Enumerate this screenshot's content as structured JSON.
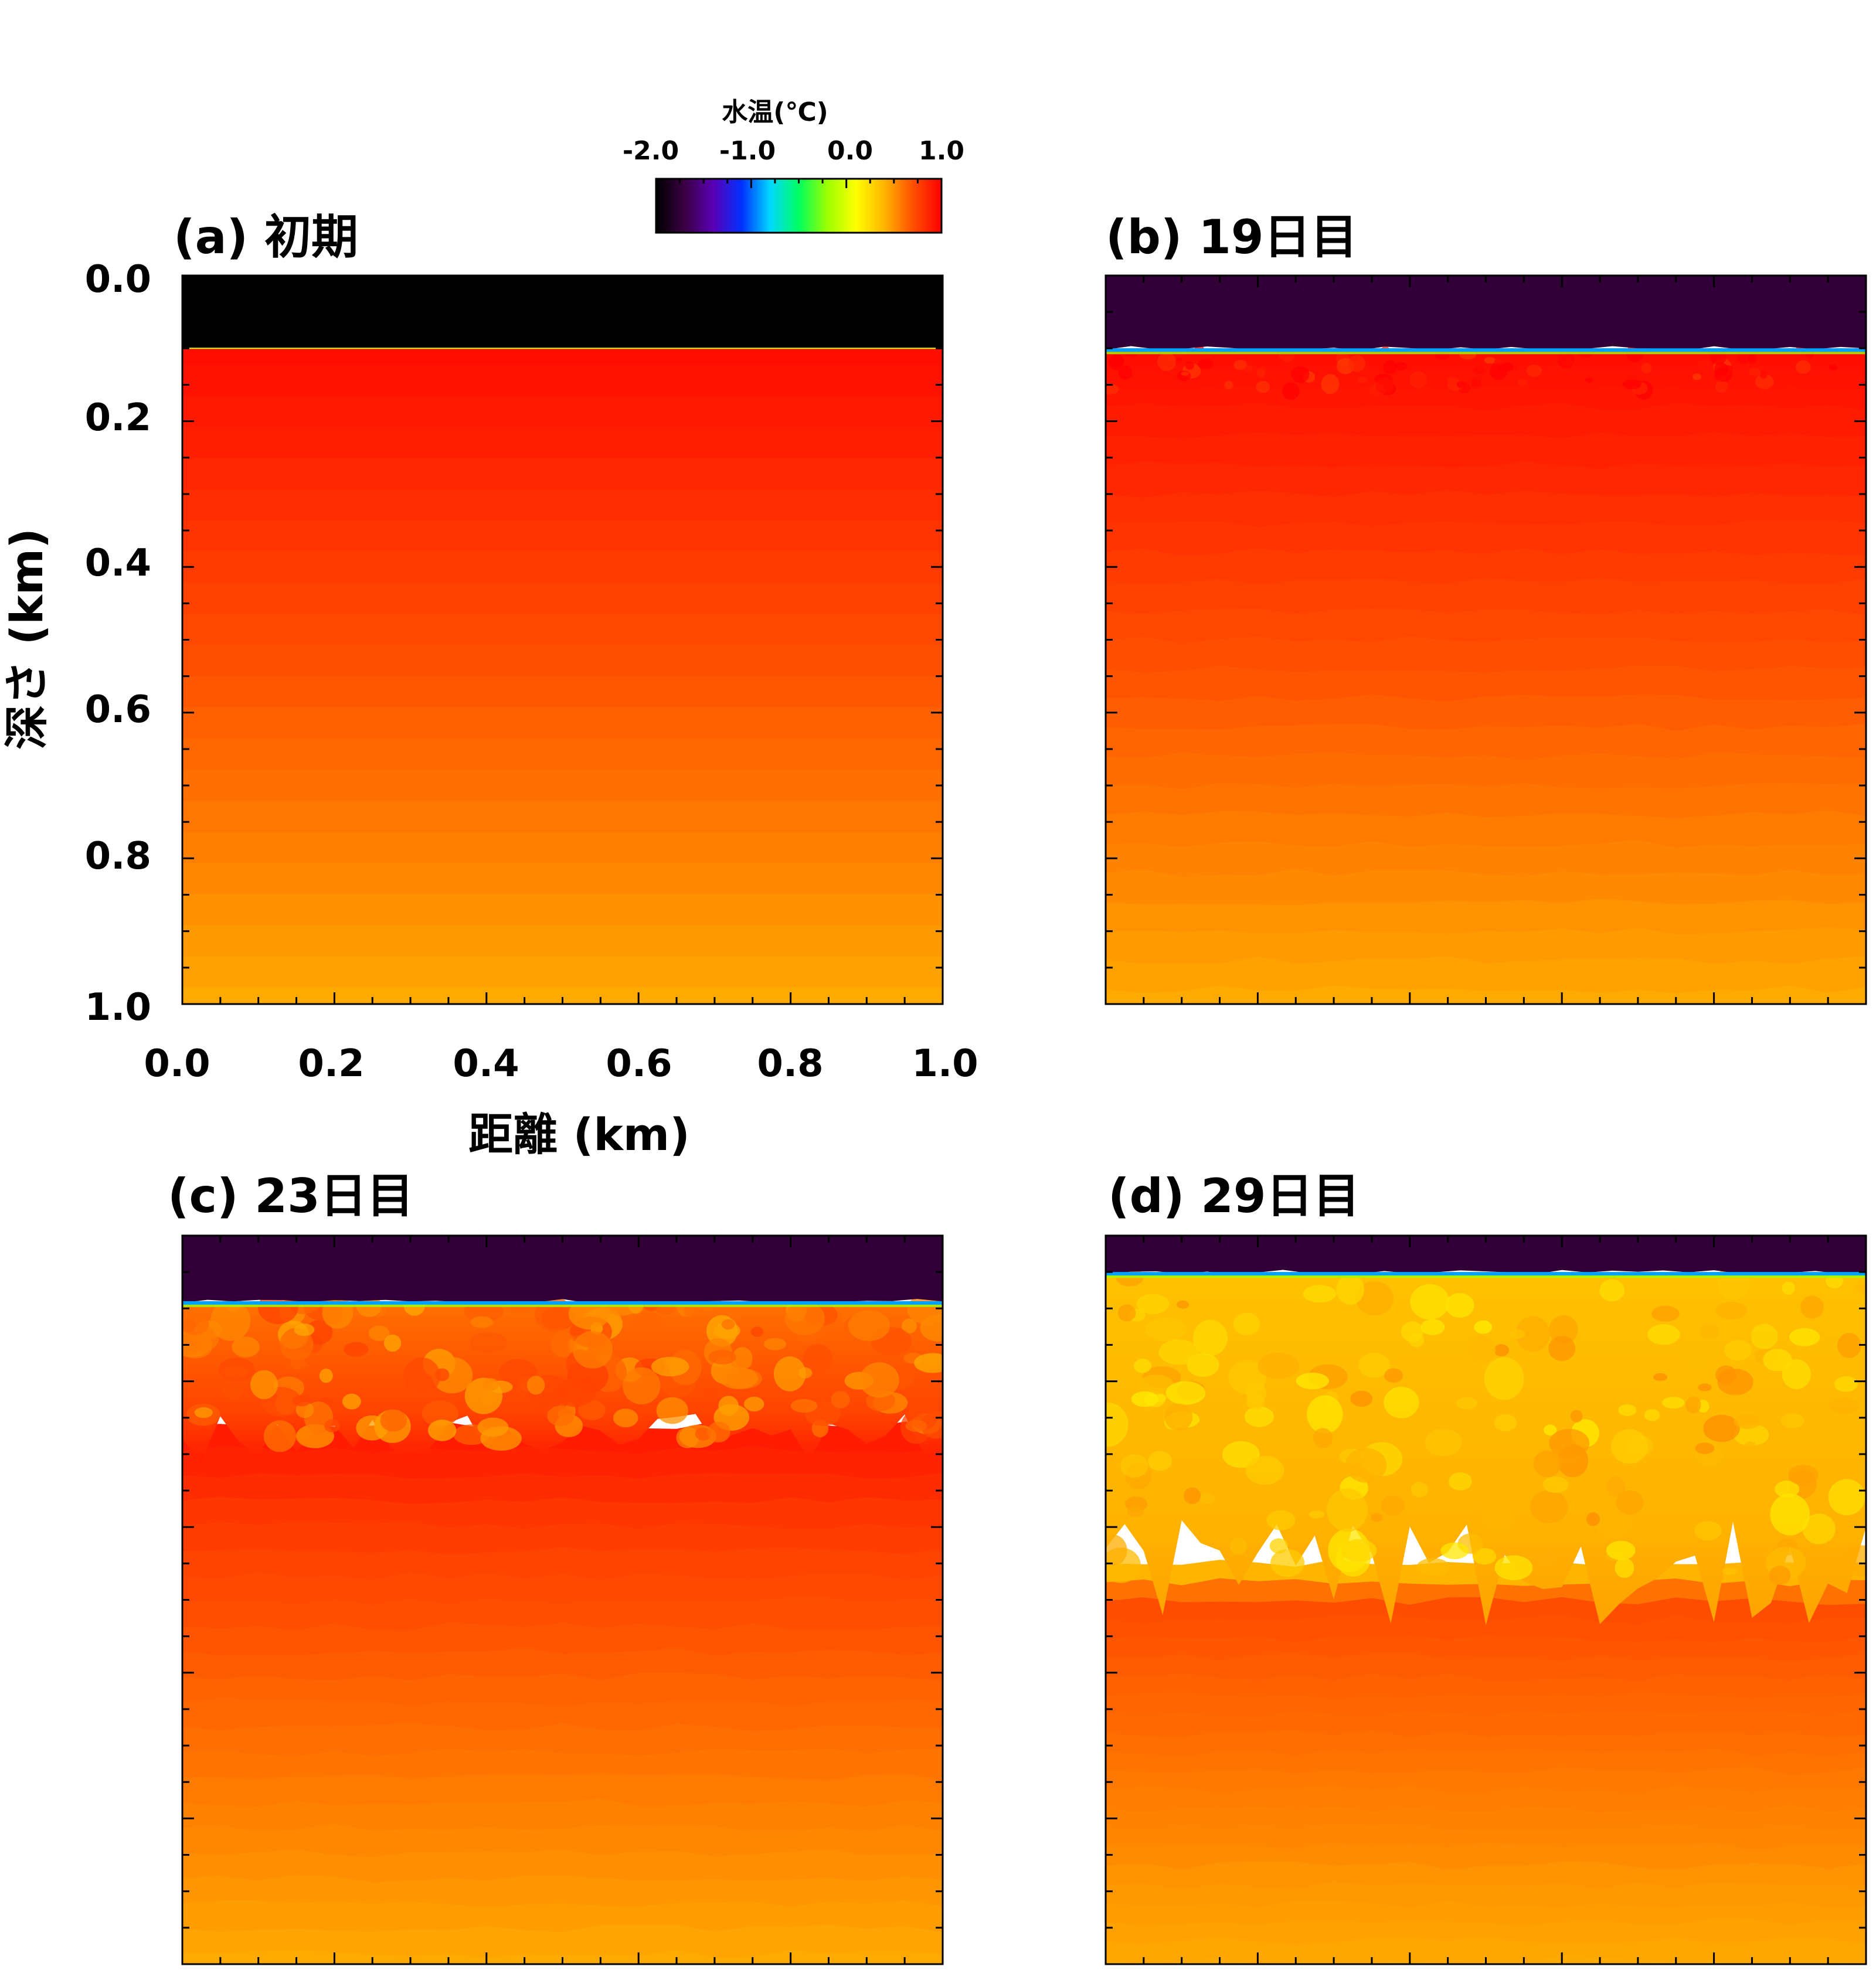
{
  "colorbar": {
    "title": "水温(℃)",
    "ticks": [
      {
        "value": -2.0,
        "label": "-2.0"
      },
      {
        "value": -1.0,
        "label": "-1.0"
      },
      {
        "value": 0.0,
        "label": "0.0"
      },
      {
        "value": 1.0,
        "label": "1.0"
      }
    ],
    "range": [
      -2.0,
      1.0
    ],
    "colormap": [
      "#000000",
      "#3a0042",
      "#5a00b4",
      "#0030ff",
      "#00d8ff",
      "#00ff60",
      "#9cff00",
      "#ffff00",
      "#ffb400",
      "#ff5000",
      "#ff0000"
    ]
  },
  "axes": {
    "xlabel": "距離 (km)",
    "ylabel": "深さ (km)",
    "xticks": [
      "0.0",
      "0.2",
      "0.4",
      "0.6",
      "0.8",
      "1.0"
    ],
    "yticks": [
      "0.0",
      "0.2",
      "0.4",
      "0.6",
      "0.8",
      "1.0"
    ]
  },
  "chart_data": [
    {
      "type": "heatmap",
      "title": "(a) 初期",
      "x_range_km": [
        0.0,
        1.0
      ],
      "depth_range_km": [
        0.0,
        1.0
      ],
      "surface_layer": {
        "depth_to_km": 0.1,
        "temperature_c": -2.0
      },
      "mixed_front_depth_km": 0.1,
      "turbulent_zone": false,
      "profile": [
        {
          "depth_km": 0.1,
          "temp_c": 0.95
        },
        {
          "depth_km": 0.2,
          "temp_c": 0.9
        },
        {
          "depth_km": 0.4,
          "temp_c": 0.78
        },
        {
          "depth_km": 0.6,
          "temp_c": 0.66
        },
        {
          "depth_km": 0.8,
          "temp_c": 0.55
        },
        {
          "depth_km": 1.0,
          "temp_c": 0.43
        }
      ]
    },
    {
      "type": "heatmap",
      "title": "(b) 19日目",
      "x_range_km": [
        0.0,
        1.0
      ],
      "depth_range_km": [
        0.0,
        1.0
      ],
      "surface_layer": {
        "depth_to_km": 0.1,
        "temperature_c": -1.75
      },
      "mixed_front_depth_km": 0.16,
      "turbulent_zone": true,
      "profile": [
        {
          "depth_km": 0.1,
          "temp_c": 0.95
        },
        {
          "depth_km": 0.2,
          "temp_c": 0.9
        },
        {
          "depth_km": 0.4,
          "temp_c": 0.78
        },
        {
          "depth_km": 0.6,
          "temp_c": 0.66
        },
        {
          "depth_km": 0.8,
          "temp_c": 0.55
        },
        {
          "depth_km": 1.0,
          "temp_c": 0.43
        }
      ]
    },
    {
      "type": "heatmap",
      "title": "(c) 23日目",
      "x_range_km": [
        0.0,
        1.0
      ],
      "depth_range_km": [
        0.0,
        1.0
      ],
      "surface_layer": {
        "depth_to_km": 0.09,
        "temperature_c": -1.75
      },
      "mixed_front_depth_km": 0.28,
      "turbulent_zone": true,
      "profile": [
        {
          "depth_km": 0.1,
          "temp_c": 0.6
        },
        {
          "depth_km": 0.28,
          "temp_c": 0.9
        },
        {
          "depth_km": 0.4,
          "temp_c": 0.78
        },
        {
          "depth_km": 0.6,
          "temp_c": 0.66
        },
        {
          "depth_km": 0.8,
          "temp_c": 0.55
        },
        {
          "depth_km": 1.0,
          "temp_c": 0.43
        }
      ]
    },
    {
      "type": "heatmap",
      "title": "(d) 29日目",
      "x_range_km": [
        0.0,
        1.0
      ],
      "depth_range_km": [
        0.0,
        1.0
      ],
      "surface_layer": {
        "depth_to_km": 0.05,
        "temperature_c": -1.75
      },
      "mixed_front_depth_km": 0.47,
      "turbulent_zone": true,
      "profile": [
        {
          "depth_km": 0.05,
          "temp_c": 0.35
        },
        {
          "depth_km": 0.47,
          "temp_c": 0.4
        },
        {
          "depth_km": 0.5,
          "temp_c": 0.72
        },
        {
          "depth_km": 0.6,
          "temp_c": 0.66
        },
        {
          "depth_km": 0.8,
          "temp_c": 0.55
        },
        {
          "depth_km": 1.0,
          "temp_c": 0.43
        }
      ]
    }
  ]
}
